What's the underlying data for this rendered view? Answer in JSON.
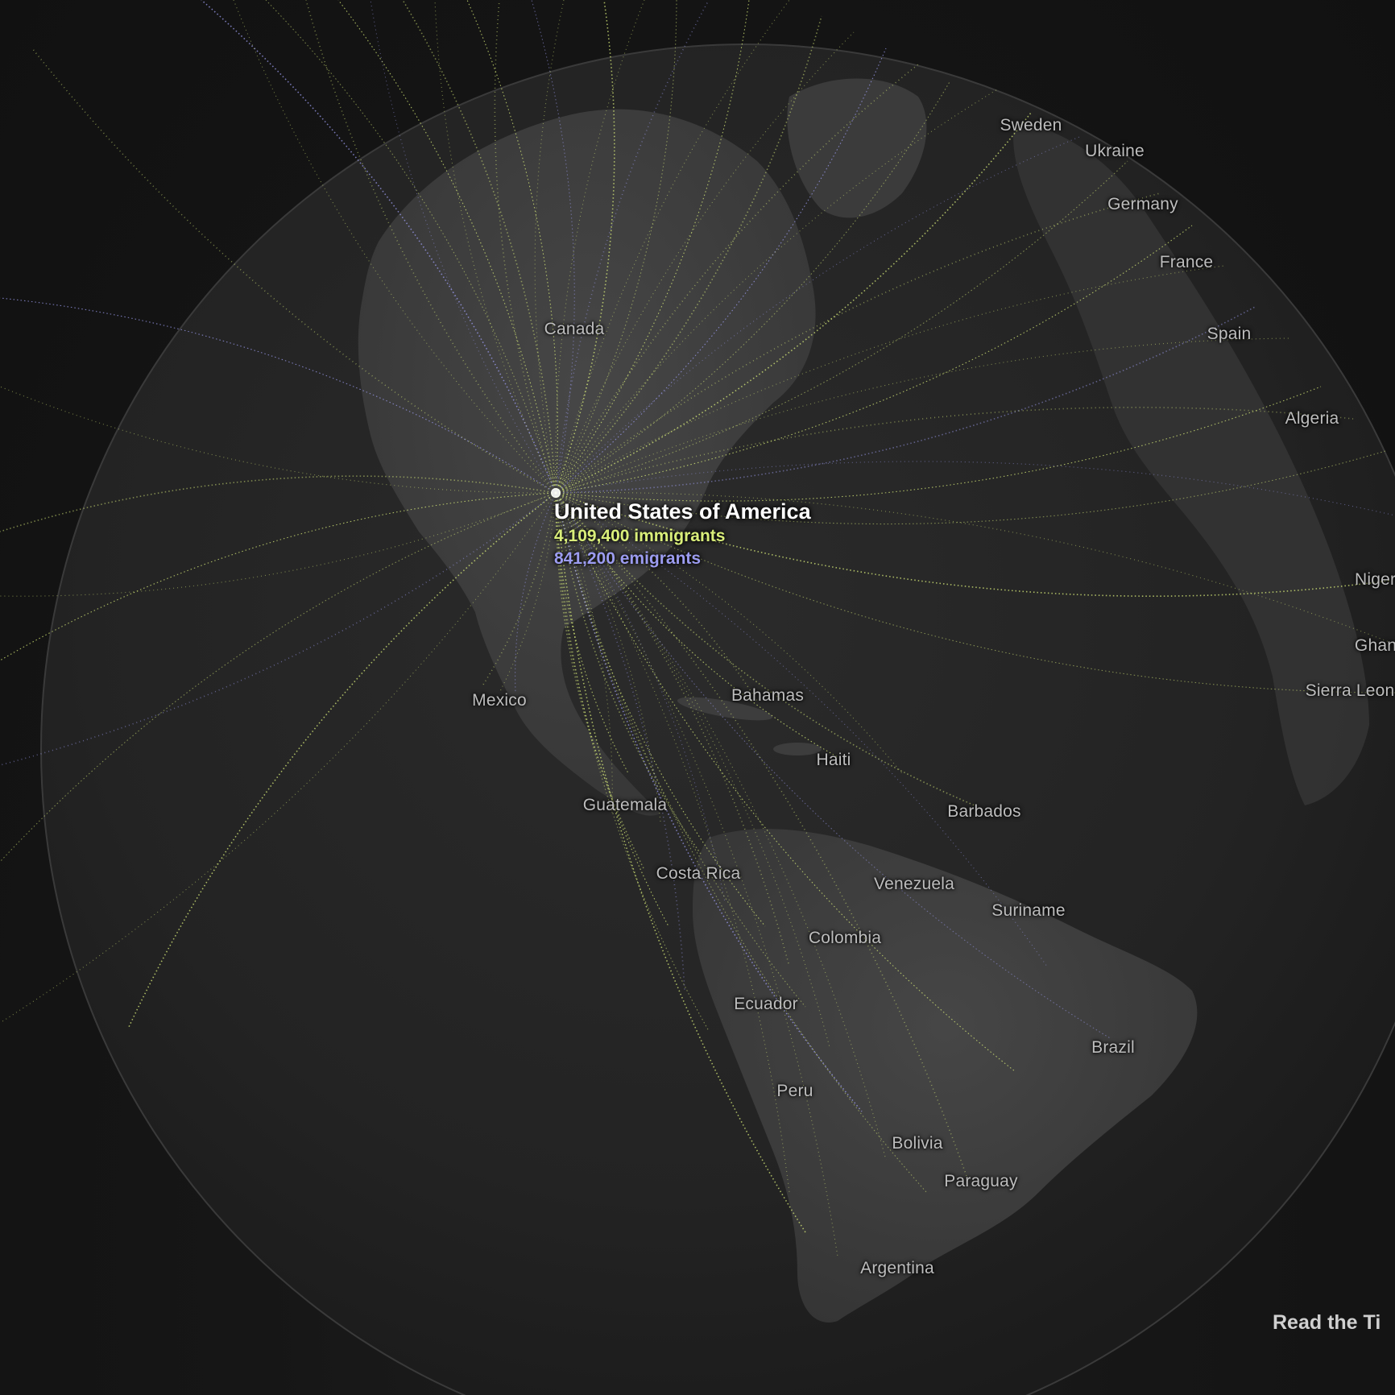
{
  "focus_country": {
    "name": "United States of America",
    "immigrants_text": "4,109,400 immigrants",
    "emigrants_text": "841,200 emigrants",
    "immigrants": 4109400,
    "emigrants": 841200
  },
  "colors": {
    "background": "#141414",
    "globe_fill": "#262626",
    "land": "#3d3d3d",
    "immigrant_flow": "#d9ee7a",
    "emigrant_flow": "#9c9cf0",
    "label": "#bdbdbd"
  },
  "labels": {
    "canada": "Canada",
    "sweden": "Sweden",
    "ukraine": "Ukraine",
    "germany": "Germany",
    "france": "France",
    "spain": "Spain",
    "algeria": "Algeria",
    "nigeria": "Nigeri",
    "ghana": "Ghan",
    "sierra_leone": "Sierra Leon",
    "mexico": "Mexico",
    "bahamas": "Bahamas",
    "haiti": "Haiti",
    "guatemala": "Guatemala",
    "barbados": "Barbados",
    "costa_rica": "Costa Rica",
    "venezuela": "Venezuela",
    "suriname": "Suriname",
    "colombia": "Colombia",
    "ecuador": "Ecuador",
    "brazil": "Brazil",
    "peru": "Peru",
    "bolivia": "Bolivia",
    "paraguay": "Paraguay",
    "argentina": "Argentina"
  },
  "read_link": "Read the Ti"
}
